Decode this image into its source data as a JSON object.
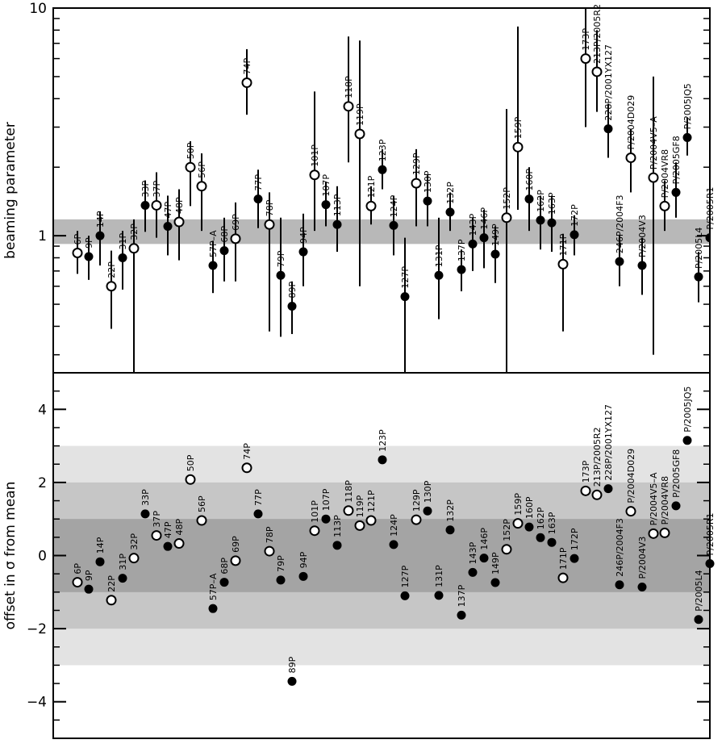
{
  "chart_data": [
    {
      "type": "scatter",
      "ylabel": "beaming parameter",
      "yscale": "log",
      "ylim": [
        0.25,
        10
      ],
      "yticks": [
        "1",
        "10"
      ],
      "shaded_band": [
        0.92,
        1.18
      ],
      "marker_legend": {
        "filled": "filled circle",
        "open": "open circle"
      },
      "points": [
        {
          "label": "6P",
          "y": 0.84,
          "err": [
            0.68,
            1.05
          ],
          "marker": "open"
        },
        {
          "label": "9P",
          "y": 0.81,
          "err": [
            0.64,
            1.0
          ],
          "marker": "filled"
        },
        {
          "label": "14P",
          "y": 1.0,
          "err": [
            0.74,
            1.28
          ],
          "marker": "filled"
        },
        {
          "label": "22P",
          "y": 0.6,
          "err": [
            0.39,
            0.86
          ],
          "marker": "open"
        },
        {
          "label": "31P",
          "y": 0.8,
          "err": [
            0.58,
            1.05
          ],
          "marker": "filled"
        },
        {
          "label": "32P",
          "y": 0.88,
          "err": [
            0.25,
            1.18
          ],
          "marker": "open"
        },
        {
          "label": "33P",
          "y": 1.36,
          "err": [
            1.04,
            1.75
          ],
          "marker": "filled"
        },
        {
          "label": "37P",
          "y": 1.36,
          "err": [
            0.98,
            1.9
          ],
          "marker": "open"
        },
        {
          "label": "47P",
          "y": 1.1,
          "err": [
            0.82,
            1.5
          ],
          "marker": "filled"
        },
        {
          "label": "48P",
          "y": 1.15,
          "err": [
            0.78,
            1.6
          ],
          "marker": "open"
        },
        {
          "label": "50P",
          "y": 2.0,
          "err": [
            1.35,
            2.6
          ],
          "marker": "open"
        },
        {
          "label": "56P",
          "y": 1.65,
          "err": [
            1.05,
            2.3
          ],
          "marker": "open"
        },
        {
          "label": "57P–A",
          "y": 0.74,
          "err": [
            0.56,
            0.95
          ],
          "marker": "filled"
        },
        {
          "label": "68P",
          "y": 0.86,
          "err": [
            0.63,
            1.2
          ],
          "marker": "filled"
        },
        {
          "label": "69P",
          "y": 0.97,
          "err": [
            0.63,
            1.4
          ],
          "marker": "open"
        },
        {
          "label": "74P",
          "y": 4.7,
          "err": [
            3.4,
            6.6
          ],
          "marker": "open"
        },
        {
          "label": "77P",
          "y": 1.45,
          "err": [
            1.08,
            1.95
          ],
          "marker": "filled"
        },
        {
          "label": "78P",
          "y": 1.12,
          "err": [
            0.38,
            1.55
          ],
          "marker": "open"
        },
        {
          "label": "79P",
          "y": 0.67,
          "err": [
            0.36,
            1.2
          ],
          "marker": "filled"
        },
        {
          "label": "89P",
          "y": 0.49,
          "err": [
            0.37,
            0.63
          ],
          "marker": "filled"
        },
        {
          "label": "94P",
          "y": 0.85,
          "err": [
            0.6,
            1.25
          ],
          "marker": "filled"
        },
        {
          "label": "101P",
          "y": 1.85,
          "err": [
            1.05,
            4.3
          ],
          "marker": "open"
        },
        {
          "label": "107P",
          "y": 1.37,
          "err": [
            1.1,
            1.72
          ],
          "marker": "filled"
        },
        {
          "label": "113P",
          "y": 1.12,
          "err": [
            0.85,
            1.65
          ],
          "marker": "filled"
        },
        {
          "label": "118P",
          "y": 3.7,
          "err": [
            2.1,
            7.5
          ],
          "marker": "open"
        },
        {
          "label": "119P",
          "y": 2.8,
          "err": [
            0.6,
            7.2
          ],
          "marker": "open"
        },
        {
          "label": "121P",
          "y": 1.35,
          "err": [
            1.12,
            1.65
          ],
          "marker": "open"
        },
        {
          "label": "123P",
          "y": 1.95,
          "err": [
            1.6,
            2.4
          ],
          "marker": "filled"
        },
        {
          "label": "124P",
          "y": 1.11,
          "err": [
            0.82,
            1.5
          ],
          "marker": "filled"
        },
        {
          "label": "127P",
          "y": 0.54,
          "err": [
            0.25,
            0.98
          ],
          "marker": "filled"
        },
        {
          "label": "129P",
          "y": 1.7,
          "err": [
            1.1,
            2.4
          ],
          "marker": "open"
        },
        {
          "label": "130P",
          "y": 1.42,
          "err": [
            1.1,
            1.85
          ],
          "marker": "filled"
        },
        {
          "label": "131P",
          "y": 0.67,
          "err": [
            0.43,
            1.2
          ],
          "marker": "filled"
        },
        {
          "label": "132P",
          "y": 1.27,
          "err": [
            1.05,
            1.55
          ],
          "marker": "filled"
        },
        {
          "label": "137P",
          "y": 0.71,
          "err": [
            0.57,
            0.87
          ],
          "marker": "filled"
        },
        {
          "label": "143P",
          "y": 0.92,
          "err": [
            0.7,
            1.2
          ],
          "marker": "filled"
        },
        {
          "label": "146P",
          "y": 0.98,
          "err": [
            0.72,
            1.3
          ],
          "marker": "filled"
        },
        {
          "label": "149P",
          "y": 0.83,
          "err": [
            0.62,
            1.1
          ],
          "marker": "filled"
        },
        {
          "label": "152P",
          "y": 1.2,
          "err": [
            0.25,
            3.6
          ],
          "marker": "open"
        },
        {
          "label": "159P",
          "y": 2.45,
          "err": [
            1.3,
            8.3
          ],
          "marker": "open"
        },
        {
          "label": "160P",
          "y": 1.45,
          "err": [
            1.05,
            2.0
          ],
          "marker": "filled"
        },
        {
          "label": "162P",
          "y": 1.17,
          "err": [
            0.87,
            1.5
          ],
          "marker": "filled"
        },
        {
          "label": "163P",
          "y": 1.14,
          "err": [
            0.85,
            1.5
          ],
          "marker": "filled"
        },
        {
          "label": "171P",
          "y": 0.75,
          "err": [
            0.38,
            1.02
          ],
          "marker": "open"
        },
        {
          "label": "172P",
          "y": 1.01,
          "err": [
            0.82,
            1.23
          ],
          "marker": "filled"
        },
        {
          "label": "173P",
          "y": 6.0,
          "err": [
            3.0,
            10.0
          ],
          "marker": "open"
        },
        {
          "label": "213P/2005R2",
          "y": 5.25,
          "err": [
            3.5,
            8.0
          ],
          "marker": "open"
        },
        {
          "label": "228P/2001YX127",
          "y": 2.95,
          "err": [
            2.2,
            3.8
          ],
          "marker": "filled"
        },
        {
          "label": "246P/2004F3",
          "y": 0.77,
          "err": [
            0.6,
            1.0
          ],
          "marker": "filled"
        },
        {
          "label": "P/2004D029",
          "y": 2.2,
          "err": [
            1.55,
            2.95
          ],
          "marker": "open"
        },
        {
          "label": "P/2004V3",
          "y": 0.74,
          "err": [
            0.55,
            0.98
          ],
          "marker": "filled"
        },
        {
          "label": "P/2004V5–A",
          "y": 1.8,
          "err": [
            0.3,
            5.0
          ],
          "marker": "open"
        },
        {
          "label": "P/2004VR8",
          "y": 1.35,
          "err": [
            1.05,
            1.75
          ],
          "marker": "open"
        },
        {
          "label": "P/2005GF8",
          "y": 1.55,
          "err": [
            1.2,
            2.1
          ],
          "marker": "filled"
        },
        {
          "label": "P/2005JQ5",
          "y": 2.7,
          "err": [
            2.25,
            3.3
          ],
          "marker": "filled"
        },
        {
          "label": "P/2005L4",
          "y": 0.66,
          "err": [
            0.51,
            0.85
          ],
          "marker": "filled"
        },
        {
          "label": "P/2005R1",
          "y": 0.98,
          "err": [
            0.79,
            1.2
          ],
          "marker": "filled"
        }
      ]
    },
    {
      "type": "scatter",
      "ylabel": "offset in σ from mean",
      "ylim": [
        -5,
        5
      ],
      "yticks": [
        "−4",
        "−2",
        "0",
        "2",
        "4"
      ],
      "bands": [
        {
          "range": [
            -3,
            3
          ],
          "color": "#e3e3e3"
        },
        {
          "range": [
            -2,
            2
          ],
          "color": "#c6c6c6"
        },
        {
          "range": [
            -1,
            1
          ],
          "color": "#a4a4a4"
        }
      ],
      "points": [
        {
          "label": "6P",
          "y": -0.73,
          "marker": "open"
        },
        {
          "label": "9P",
          "y": -0.92,
          "marker": "filled"
        },
        {
          "label": "14P",
          "y": -0.17,
          "marker": "filled"
        },
        {
          "label": "22P",
          "y": -1.22,
          "marker": "open"
        },
        {
          "label": "31P",
          "y": -0.62,
          "marker": "filled"
        },
        {
          "label": "32P",
          "y": -0.07,
          "marker": "open"
        },
        {
          "label": "33P",
          "y": 1.14,
          "marker": "filled"
        },
        {
          "label": "37P",
          "y": 0.55,
          "marker": "open"
        },
        {
          "label": "47P",
          "y": 0.25,
          "marker": "filled"
        },
        {
          "label": "48P",
          "y": 0.33,
          "marker": "open"
        },
        {
          "label": "50P",
          "y": 2.08,
          "marker": "open"
        },
        {
          "label": "56P",
          "y": 0.96,
          "marker": "open"
        },
        {
          "label": "57P–A",
          "y": -1.45,
          "marker": "filled"
        },
        {
          "label": "68P",
          "y": -0.73,
          "marker": "filled"
        },
        {
          "label": "69P",
          "y": -0.14,
          "marker": "open"
        },
        {
          "label": "74P",
          "y": 2.4,
          "marker": "open"
        },
        {
          "label": "77P",
          "y": 1.14,
          "marker": "filled"
        },
        {
          "label": "78P",
          "y": 0.12,
          "marker": "open"
        },
        {
          "label": "79P",
          "y": -0.67,
          "marker": "filled"
        },
        {
          "label": "89P",
          "y": -3.44,
          "marker": "filled"
        },
        {
          "label": "94P",
          "y": -0.57,
          "marker": "filled"
        },
        {
          "label": "101P",
          "y": 0.68,
          "marker": "open"
        },
        {
          "label": "107P",
          "y": 1.0,
          "marker": "filled"
        },
        {
          "label": "113P",
          "y": 0.28,
          "marker": "filled"
        },
        {
          "label": "118P",
          "y": 1.23,
          "marker": "open"
        },
        {
          "label": "119P",
          "y": 0.82,
          "marker": "open"
        },
        {
          "label": "121P",
          "y": 0.96,
          "marker": "open"
        },
        {
          "label": "123P",
          "y": 2.62,
          "marker": "filled"
        },
        {
          "label": "124P",
          "y": 0.3,
          "marker": "filled"
        },
        {
          "label": "127P",
          "y": -1.1,
          "marker": "filled"
        },
        {
          "label": "129P",
          "y": 0.98,
          "marker": "open"
        },
        {
          "label": "130P",
          "y": 1.22,
          "marker": "filled"
        },
        {
          "label": "131P",
          "y": -1.09,
          "marker": "filled"
        },
        {
          "label": "132P",
          "y": 0.7,
          "marker": "filled"
        },
        {
          "label": "137P",
          "y": -1.63,
          "marker": "filled"
        },
        {
          "label": "143P",
          "y": -0.46,
          "marker": "filled"
        },
        {
          "label": "146P",
          "y": -0.07,
          "marker": "filled"
        },
        {
          "label": "149P",
          "y": -0.74,
          "marker": "filled"
        },
        {
          "label": "152P",
          "y": 0.17,
          "marker": "open"
        },
        {
          "label": "159P",
          "y": 0.88,
          "marker": "open"
        },
        {
          "label": "160P",
          "y": 0.78,
          "marker": "filled"
        },
        {
          "label": "162P",
          "y": 0.49,
          "marker": "filled"
        },
        {
          "label": "163P",
          "y": 0.36,
          "marker": "filled"
        },
        {
          "label": "171P",
          "y": -0.61,
          "marker": "open"
        },
        {
          "label": "172P",
          "y": -0.08,
          "marker": "filled"
        },
        {
          "label": "173P",
          "y": 1.77,
          "marker": "open"
        },
        {
          "label": "213P/2005R2",
          "y": 1.66,
          "marker": "open"
        },
        {
          "label": "228P/2001YX127",
          "y": 1.83,
          "marker": "filled"
        },
        {
          "label": "246P/2004F3",
          "y": -0.8,
          "marker": "filled"
        },
        {
          "label": "P/2004D029",
          "y": 1.21,
          "marker": "open"
        },
        {
          "label": "P/2004V3",
          "y": -0.86,
          "marker": "filled"
        },
        {
          "label": "P/2004V5–A",
          "y": 0.6,
          "marker": "open"
        },
        {
          "label": "P/2004VR8",
          "y": 0.62,
          "marker": "open"
        },
        {
          "label": "P/2005GF8",
          "y": 1.36,
          "marker": "filled"
        },
        {
          "label": "P/2005JQ5",
          "y": 3.15,
          "marker": "filled"
        },
        {
          "label": "P/2005L4",
          "y": -1.75,
          "marker": "filled"
        },
        {
          "label": "P/2005R1",
          "y": -0.22,
          "marker": "filled"
        }
      ]
    }
  ]
}
